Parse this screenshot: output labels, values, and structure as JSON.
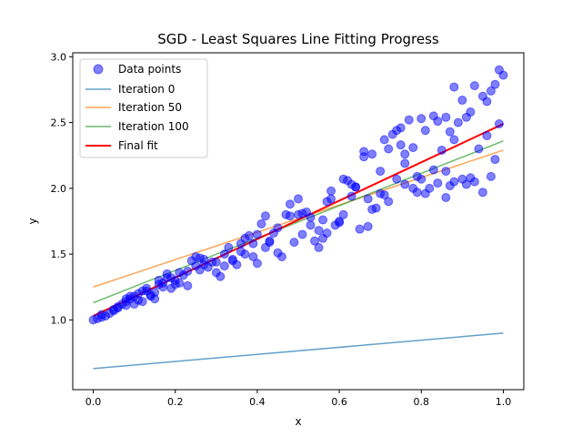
{
  "chart_data": {
    "type": "scatter",
    "title": "SGD - Least Squares Line Fitting Progress",
    "xlabel": "x",
    "ylabel": "y",
    "xlim": [
      -0.05,
      1.05
    ],
    "ylim": [
      0.47,
      3.03
    ],
    "xticks": [
      "0.0",
      "0.2",
      "0.4",
      "0.6",
      "0.8",
      "1.0"
    ],
    "yticks": [
      "1.0",
      "1.5",
      "2.0",
      "2.5",
      "3.0"
    ],
    "grid": false,
    "legend_position": "upper-left",
    "scatter": {
      "name": "Data points",
      "color": "#0000ff",
      "points": [
        [
          0.0,
          1.0
        ],
        [
          0.01,
          1.01
        ],
        [
          0.02,
          1.02
        ],
        [
          0.02,
          1.04
        ],
        [
          0.03,
          1.03
        ],
        [
          0.04,
          1.05
        ],
        [
          0.05,
          1.07
        ],
        [
          0.05,
          1.08
        ],
        [
          0.06,
          1.1
        ],
        [
          0.07,
          1.12
        ],
        [
          0.08,
          1.11
        ],
        [
          0.08,
          1.14
        ],
        [
          0.09,
          1.16
        ],
        [
          0.1,
          1.12
        ],
        [
          0.1,
          1.18
        ],
        [
          0.11,
          1.2
        ],
        [
          0.12,
          1.14
        ],
        [
          0.13,
          1.24
        ],
        [
          0.13,
          1.22
        ],
        [
          0.14,
          1.18
        ],
        [
          0.15,
          1.16
        ],
        [
          0.16,
          1.3
        ],
        [
          0.17,
          1.28
        ],
        [
          0.18,
          1.32
        ],
        [
          0.18,
          1.35
        ],
        [
          0.19,
          1.24
        ],
        [
          0.2,
          1.3
        ],
        [
          0.21,
          1.28
        ],
        [
          0.22,
          1.34
        ],
        [
          0.23,
          1.26
        ],
        [
          0.24,
          1.45
        ],
        [
          0.25,
          1.48
        ],
        [
          0.26,
          1.38
        ],
        [
          0.27,
          1.42
        ],
        [
          0.28,
          1.4
        ],
        [
          0.29,
          1.44
        ],
        [
          0.3,
          1.36
        ],
        [
          0.31,
          1.33
        ],
        [
          0.32,
          1.5
        ],
        [
          0.33,
          1.55
        ],
        [
          0.34,
          1.46
        ],
        [
          0.35,
          1.42
        ],
        [
          0.36,
          1.58
        ],
        [
          0.37,
          1.5
        ],
        [
          0.37,
          1.62
        ],
        [
          0.38,
          1.64
        ],
        [
          0.39,
          1.48
        ],
        [
          0.4,
          1.43
        ],
        [
          0.41,
          1.73
        ],
        [
          0.42,
          1.79
        ],
        [
          0.42,
          1.55
        ],
        [
          0.43,
          1.6
        ],
        [
          0.44,
          1.66
        ],
        [
          0.45,
          1.51
        ],
        [
          0.46,
          1.48
        ],
        [
          0.47,
          1.8
        ],
        [
          0.48,
          1.88
        ],
        [
          0.49,
          1.59
        ],
        [
          0.5,
          1.92
        ],
        [
          0.5,
          1.8
        ],
        [
          0.51,
          1.65
        ],
        [
          0.52,
          1.82
        ],
        [
          0.53,
          1.78
        ],
        [
          0.54,
          1.6
        ],
        [
          0.55,
          1.55
        ],
        [
          0.55,
          1.68
        ],
        [
          0.56,
          1.76
        ],
        [
          0.57,
          1.66
        ],
        [
          0.57,
          1.9
        ],
        [
          0.58,
          1.98
        ],
        [
          0.59,
          1.72
        ],
        [
          0.6,
          1.75
        ],
        [
          0.61,
          1.8
        ],
        [
          0.61,
          2.07
        ],
        [
          0.62,
          2.06
        ],
        [
          0.63,
          2.03
        ],
        [
          0.63,
          1.94
        ],
        [
          0.64,
          2.01
        ],
        [
          0.65,
          1.69
        ],
        [
          0.66,
          2.24
        ],
        [
          0.66,
          2.28
        ],
        [
          0.67,
          1.92
        ],
        [
          0.68,
          2.26
        ],
        [
          0.68,
          1.84
        ],
        [
          0.69,
          1.85
        ],
        [
          0.7,
          2.13
        ],
        [
          0.71,
          2.37
        ],
        [
          0.71,
          1.95
        ],
        [
          0.72,
          2.3
        ],
        [
          0.73,
          2.41
        ],
        [
          0.74,
          2.44
        ],
        [
          0.75,
          2.46
        ],
        [
          0.75,
          2.33
        ],
        [
          0.76,
          2.26
        ],
        [
          0.76,
          2.19
        ],
        [
          0.77,
          2.52
        ],
        [
          0.78,
          2.31
        ],
        [
          0.78,
          2.0
        ],
        [
          0.79,
          1.97
        ],
        [
          0.8,
          2.53
        ],
        [
          0.81,
          1.96
        ],
        [
          0.81,
          2.44
        ],
        [
          0.82,
          2.0
        ],
        [
          0.83,
          2.55
        ],
        [
          0.84,
          2.51
        ],
        [
          0.85,
          2.29
        ],
        [
          0.86,
          2.54
        ],
        [
          0.86,
          2.13
        ],
        [
          0.87,
          2.43
        ],
        [
          0.88,
          2.37
        ],
        [
          0.88,
          2.77
        ],
        [
          0.89,
          2.5
        ],
        [
          0.9,
          2.67
        ],
        [
          0.91,
          2.54
        ],
        [
          0.92,
          2.58
        ],
        [
          0.92,
          2.08
        ],
        [
          0.93,
          2.78
        ],
        [
          0.94,
          2.3
        ],
        [
          0.95,
          2.7
        ],
        [
          0.96,
          2.66
        ],
        [
          0.97,
          2.74
        ],
        [
          0.98,
          2.79
        ],
        [
          0.99,
          2.9
        ],
        [
          1.0,
          2.86
        ],
        [
          0.86,
          1.93
        ],
        [
          0.9,
          2.07
        ],
        [
          0.95,
          1.97
        ],
        [
          0.97,
          2.09
        ],
        [
          0.98,
          2.22
        ],
        [
          0.93,
          2.05
        ],
        [
          0.88,
          2.05
        ],
        [
          0.84,
          2.04
        ],
        [
          0.8,
          2.07
        ],
        [
          0.76,
          2.03
        ],
        [
          0.72,
          1.9
        ],
        [
          0.7,
          1.96
        ],
        [
          0.67,
          1.71
        ],
        [
          0.64,
          2.01
        ],
        [
          0.6,
          1.74
        ],
        [
          0.58,
          1.92
        ],
        [
          0.56,
          1.62
        ],
        [
          0.53,
          1.72
        ],
        [
          0.51,
          1.81
        ],
        [
          0.48,
          1.79
        ],
        [
          0.45,
          1.7
        ],
        [
          0.43,
          1.59
        ],
        [
          0.4,
          1.65
        ],
        [
          0.39,
          1.58
        ],
        [
          0.36,
          1.52
        ],
        [
          0.34,
          1.45
        ],
        [
          0.32,
          1.41
        ],
        [
          0.3,
          1.44
        ],
        [
          0.27,
          1.46
        ],
        [
          0.26,
          1.47
        ],
        [
          0.25,
          1.41
        ],
        [
          0.23,
          1.37
        ],
        [
          0.21,
          1.36
        ],
        [
          0.2,
          1.27
        ],
        [
          0.19,
          1.32
        ],
        [
          0.17,
          1.25
        ],
        [
          0.16,
          1.27
        ],
        [
          0.15,
          1.21
        ],
        [
          0.14,
          1.19
        ],
        [
          0.12,
          1.22
        ],
        [
          0.11,
          1.15
        ],
        [
          0.09,
          1.18
        ],
        [
          0.08,
          1.16
        ],
        [
          0.06,
          1.09
        ],
        [
          0.96,
          2.4
        ],
        [
          0.99,
          2.49
        ],
        [
          0.91,
          2.03
        ],
        [
          0.87,
          2.02
        ],
        [
          0.83,
          2.14
        ],
        [
          0.79,
          2.09
        ],
        [
          0.74,
          2.07
        ]
      ]
    },
    "lines": [
      {
        "name": "Iteration 0",
        "color": "#1f77b4",
        "opacity": 0.7,
        "width": 1.5,
        "x": [
          0,
          1
        ],
        "y": [
          0.63,
          0.9
        ]
      },
      {
        "name": "Iteration 50",
        "color": "#ff7f0e",
        "opacity": 0.7,
        "width": 1.5,
        "x": [
          0,
          1
        ],
        "y": [
          1.25,
          2.29
        ]
      },
      {
        "name": "Iteration 100",
        "color": "#2ca02c",
        "opacity": 0.7,
        "width": 1.5,
        "x": [
          0,
          1
        ],
        "y": [
          1.13,
          2.36
        ]
      },
      {
        "name": "Final fit",
        "color": "#ff0000",
        "opacity": 1,
        "width": 2,
        "x": [
          0,
          1
        ],
        "y": [
          1.03,
          2.49
        ]
      }
    ]
  }
}
